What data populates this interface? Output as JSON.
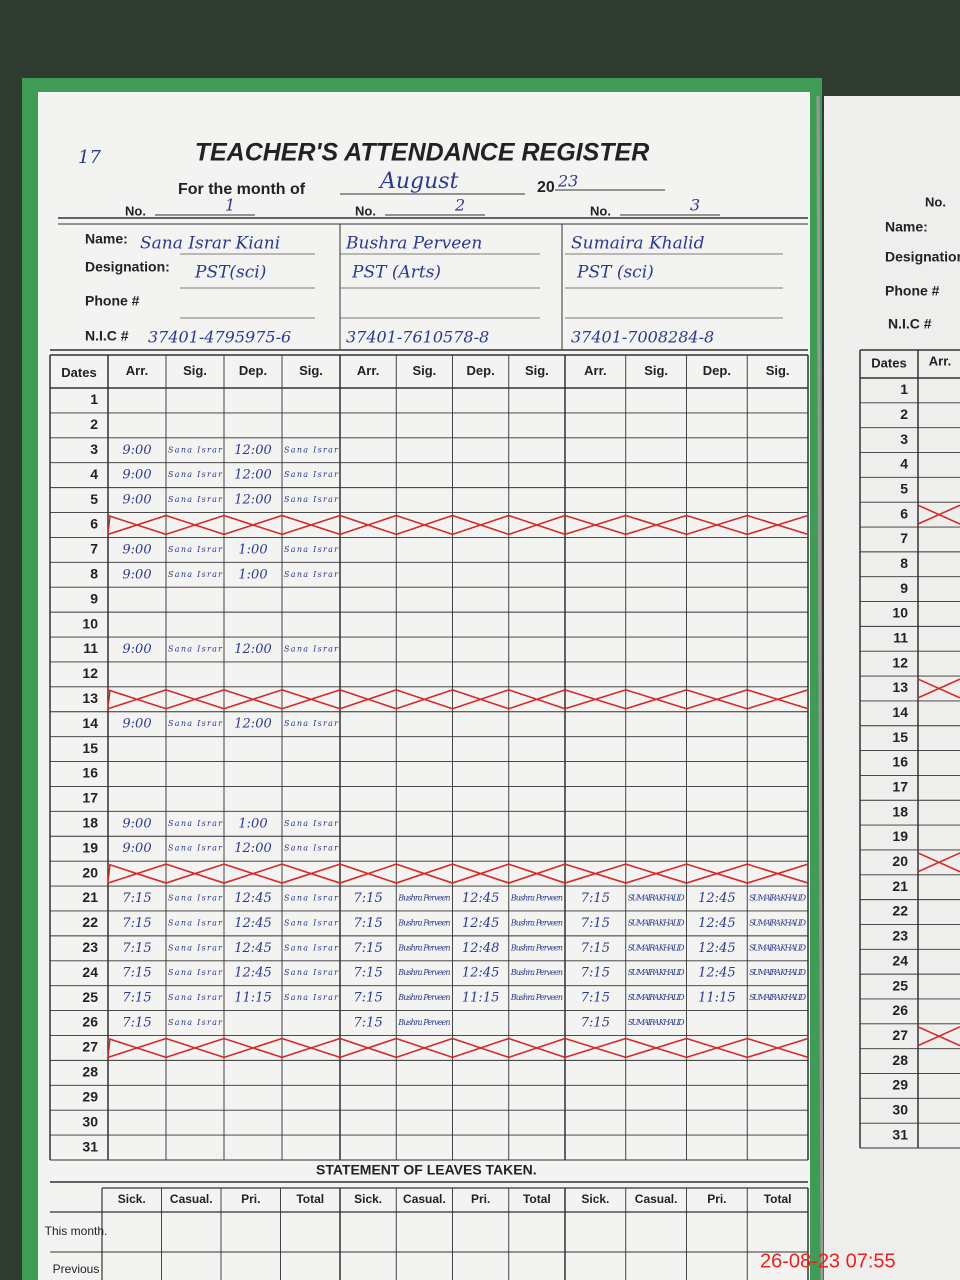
{
  "header": {
    "mark": "17",
    "title": "TEACHER'S ATTENDANCE REGISTER",
    "month_label": "For the month of",
    "month": "August",
    "year_prefix": "20",
    "year": "23",
    "no_label": "No."
  },
  "labels": {
    "name": "Name:",
    "designation": "Designation:",
    "phone": "Phone #",
    "nic": "N.I.C #"
  },
  "teachers": [
    {
      "no": "1",
      "name": "Sana Israr Kiani",
      "designation": "PST(sci)",
      "nic": "37401-4795975-6"
    },
    {
      "no": "2",
      "name": "Bushra Perveen",
      "designation": "PST (Arts)",
      "nic": "37401-7610578-8"
    },
    {
      "no": "3",
      "name": "Sumaira Khalid",
      "designation": "PST (sci)",
      "nic": "37401-7008284-8"
    }
  ],
  "columns": {
    "dates": "Dates",
    "teacher": [
      "Arr.",
      "Sig.",
      "Dep.",
      "Sig."
    ]
  },
  "rows": [
    {
      "date": 1,
      "cells": null
    },
    {
      "date": 2,
      "cells": null
    },
    {
      "date": 3,
      "cells": [
        "9:00",
        "Sana Israr",
        "12:00",
        "Sana Israr",
        null,
        null,
        null,
        null,
        null,
        null,
        null,
        null
      ]
    },
    {
      "date": 4,
      "cells": [
        "9:00",
        "Sana Israr",
        "12:00",
        "Sana Israr",
        null,
        null,
        null,
        null,
        null,
        null,
        null,
        null
      ]
    },
    {
      "date": 5,
      "cells": [
        "9:00",
        "Sana Israr",
        "12:00",
        "Sana Israr",
        null,
        null,
        null,
        null,
        null,
        null,
        null,
        null
      ]
    },
    {
      "date": 6,
      "crossed": true,
      "cells": null
    },
    {
      "date": 7,
      "cells": [
        "9:00",
        "Sana Israr",
        "1:00",
        "Sana Israr",
        null,
        null,
        null,
        null,
        null,
        null,
        null,
        null
      ]
    },
    {
      "date": 8,
      "cells": [
        "9:00",
        "Sana Israr",
        "1:00",
        "Sana Israr",
        null,
        null,
        null,
        null,
        null,
        null,
        null,
        null
      ]
    },
    {
      "date": 9,
      "cells": null
    },
    {
      "date": 10,
      "cells": null
    },
    {
      "date": 11,
      "cells": [
        "9:00",
        "Sana Israr",
        "12:00",
        "Sana Israr",
        null,
        null,
        null,
        null,
        null,
        null,
        null,
        null
      ]
    },
    {
      "date": 12,
      "cells": null
    },
    {
      "date": 13,
      "crossed": true,
      "cells": null
    },
    {
      "date": 14,
      "cells": [
        "9:00",
        "Sana Israr",
        "12:00",
        "Sana Israr",
        null,
        null,
        null,
        null,
        null,
        null,
        null,
        null
      ]
    },
    {
      "date": 15,
      "cells": null
    },
    {
      "date": 16,
      "cells": null
    },
    {
      "date": 17,
      "cells": null
    },
    {
      "date": 18,
      "cells": [
        "9:00",
        "Sana Israr",
        "1:00",
        "Sana Israr",
        null,
        null,
        null,
        null,
        null,
        null,
        null,
        null
      ]
    },
    {
      "date": 19,
      "cells": [
        "9:00",
        "Sana Israr",
        "12:00",
        "Sana Israr",
        null,
        null,
        null,
        null,
        null,
        null,
        null,
        null
      ]
    },
    {
      "date": 20,
      "crossed": true,
      "cells": null
    },
    {
      "date": 21,
      "cells": [
        "7:15",
        "Sana Israr",
        "12:45",
        "Sana Israr",
        "7:15",
        "Bushra Perveen",
        "12:45",
        "Bushra Perveen",
        "7:15",
        "SUMAIRA KHALID",
        "12:45",
        "SUMAIRA KHALID"
      ]
    },
    {
      "date": 22,
      "cells": [
        "7:15",
        "Sana Israr",
        "12:45",
        "Sana Israr",
        "7:15",
        "Bushra Perveen",
        "12:45",
        "Bushra Perveen",
        "7:15",
        "SUMAIRA KHALID",
        "12:45",
        "SUMAIRA KHALID"
      ]
    },
    {
      "date": 23,
      "cells": [
        "7:15",
        "Sana Israr",
        "12:45",
        "Sana Israr",
        "7:15",
        "Bushra Perveen",
        "12:48",
        "Bushra Perveen",
        "7:15",
        "SUMAIRA KHALID",
        "12:45",
        "SUMAIRA KHALID"
      ]
    },
    {
      "date": 24,
      "cells": [
        "7:15",
        "Sana Israr",
        "12:45",
        "Sana Israr",
        "7:15",
        "Bushra Perveen",
        "12:45",
        "Bushra Perveen",
        "7:15",
        "SUMAIRA KHALID",
        "12:45",
        "SUMAIRA KHALID"
      ]
    },
    {
      "date": 25,
      "cells": [
        "7:15",
        "Sana Israr",
        "11:15",
        "Sana Israr",
        "7:15",
        "Bushra Perveen",
        "11:15",
        "Bushra Perveen",
        "7:15",
        "SUMAIRA KHALID",
        "11:15",
        "SUMAIRA KHALID"
      ]
    },
    {
      "date": 26,
      "cells": [
        "7:15",
        "Sana Israr",
        null,
        null,
        "7:15",
        "Bushra Perveen",
        null,
        null,
        "7:15",
        "SUMAIRA KHALID",
        null,
        null
      ]
    },
    {
      "date": 27,
      "crossed": true,
      "cells": null
    },
    {
      "date": 28,
      "cells": null
    },
    {
      "date": 29,
      "cells": null
    },
    {
      "date": 30,
      "cells": null
    },
    {
      "date": 31,
      "cells": null
    }
  ],
  "leaves": {
    "title": "STATEMENT OF LEAVES TAKEN.",
    "columns": [
      "Sick.",
      "Casual.",
      "Pri.",
      "Total"
    ],
    "rows": [
      "This month.",
      "Previous"
    ]
  },
  "timestamp": "26-08-23 07:55"
}
